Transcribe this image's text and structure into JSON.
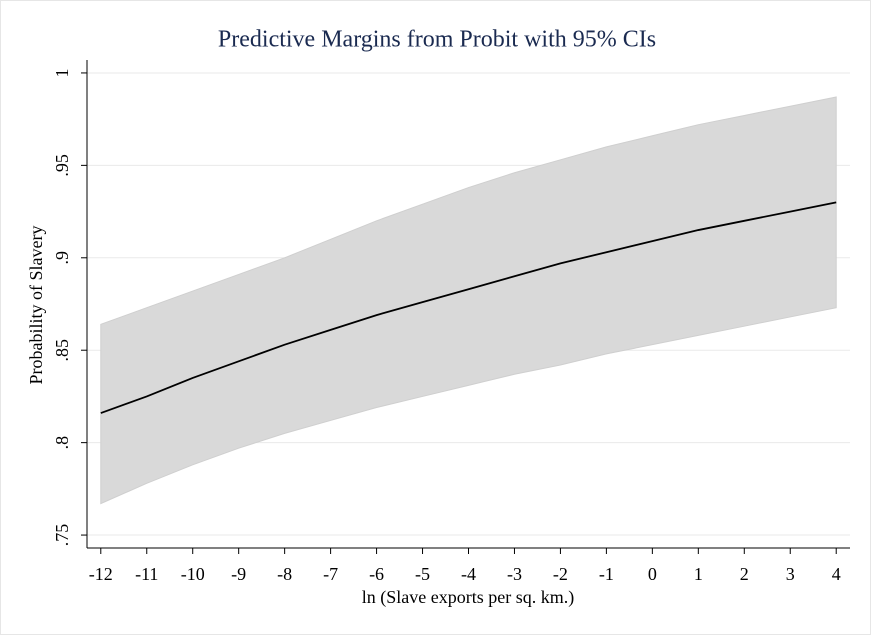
{
  "chart_data": {
    "type": "line",
    "title": "Predictive Margins from Probit with 95% CIs",
    "xlabel": "ln (Slave exports per sq. km.)",
    "ylabel": "Probability of Slavery",
    "x": [
      -12,
      -11,
      -10,
      -9,
      -8,
      -7,
      -6,
      -5,
      -4,
      -3,
      -2,
      -1,
      0,
      1,
      2,
      3,
      4
    ],
    "values": [
      0.816,
      0.825,
      0.835,
      0.844,
      0.853,
      0.861,
      0.869,
      0.876,
      0.883,
      0.89,
      0.897,
      0.903,
      0.909,
      0.915,
      0.92,
      0.925,
      0.93
    ],
    "upper": [
      0.864,
      0.873,
      0.882,
      0.891,
      0.9,
      0.91,
      0.92,
      0.929,
      0.938,
      0.946,
      0.953,
      0.96,
      0.966,
      0.972,
      0.977,
      0.982,
      0.987
    ],
    "lower": [
      0.767,
      0.778,
      0.788,
      0.797,
      0.805,
      0.812,
      0.819,
      0.825,
      0.831,
      0.837,
      0.842,
      0.848,
      0.853,
      0.858,
      0.863,
      0.868,
      0.873
    ],
    "color": "#000000",
    "band_color": "#d9d9d9",
    "xlim": [
      -12.3,
      4.3
    ],
    "ylim": [
      0.743,
      1.007
    ],
    "xticks": [
      -12,
      -11,
      -10,
      -9,
      -8,
      -7,
      -6,
      -5,
      -4,
      -3,
      -2,
      -1,
      0,
      1,
      2,
      3,
      4
    ],
    "yticks": [
      {
        "value": 0.75,
        "label": ".75"
      },
      {
        "value": 0.8,
        "label": ".8"
      },
      {
        "value": 0.85,
        "label": ".85"
      },
      {
        "value": 0.9,
        "label": ".9"
      },
      {
        "value": 0.95,
        "label": ".95"
      },
      1
    ],
    "grid": true
  }
}
